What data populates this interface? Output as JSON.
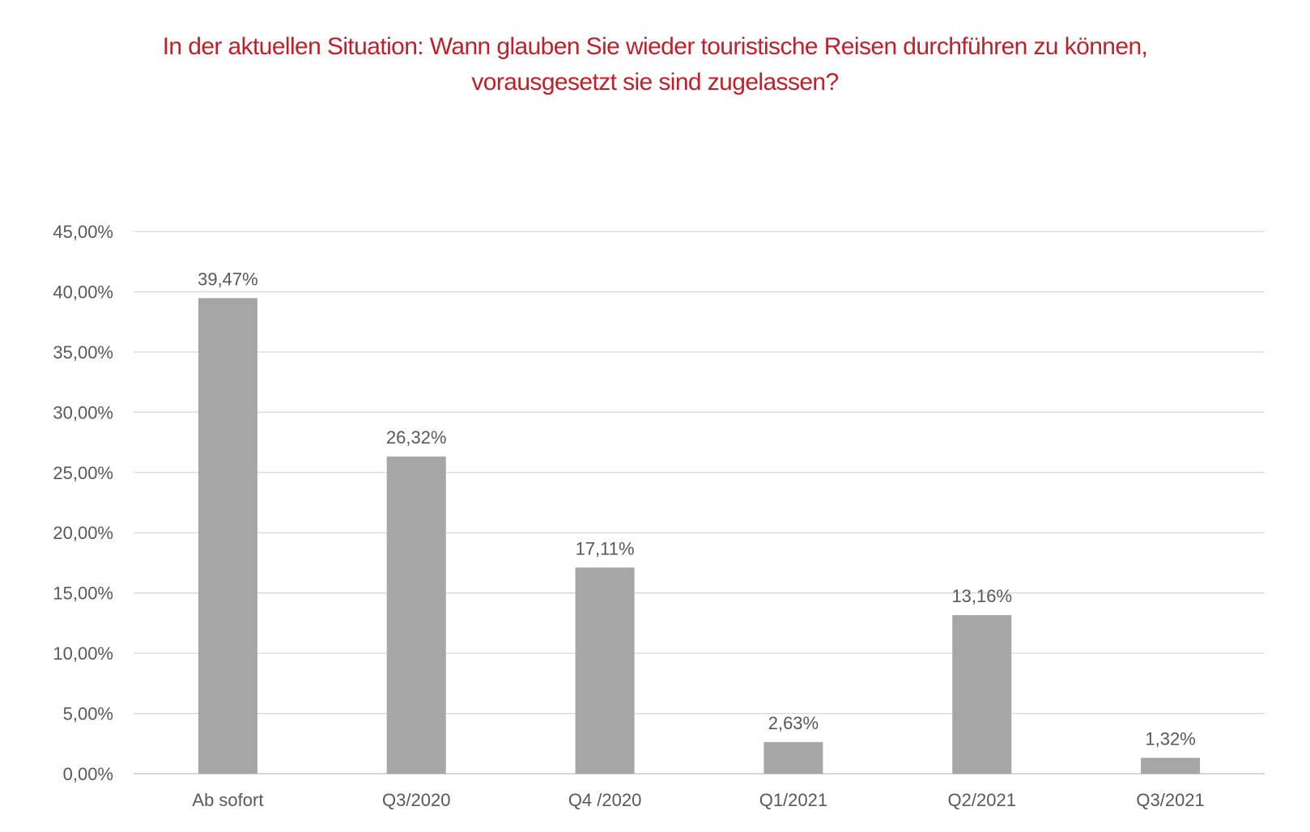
{
  "chart_data": {
    "type": "bar",
    "title_lines": [
      "In der aktuellen Situation: Wann glauben Sie wieder touristische Reisen durchführen zu können,",
      "vorausgesetzt sie sind zugelassen?"
    ],
    "categories": [
      "Ab sofort",
      "Q3/2020",
      "Q4 /2020",
      "Q1/2021",
      "Q2/2021",
      "Q3/2021"
    ],
    "values": [
      39.47,
      26.32,
      17.11,
      2.63,
      13.16,
      1.32
    ],
    "value_labels": [
      "39,47%",
      "26,32%",
      "17,11%",
      "2,63%",
      "13,16%",
      "1,32%"
    ],
    "ylim": [
      0,
      45
    ],
    "y_ticks": [
      0,
      5,
      10,
      15,
      20,
      25,
      30,
      35,
      40,
      45
    ],
    "y_tick_labels": [
      "0,00%",
      "5,00%",
      "10,00%",
      "15,00%",
      "20,00%",
      "25,00%",
      "30,00%",
      "35,00%",
      "40,00%",
      "45,00%"
    ],
    "xlabel": "",
    "ylabel": "",
    "grid": true,
    "legend": "none",
    "colors": {
      "bar": "#a6a6a6",
      "grid": "#d9d9d9",
      "title": "#c0202a",
      "text": "#595959"
    }
  }
}
